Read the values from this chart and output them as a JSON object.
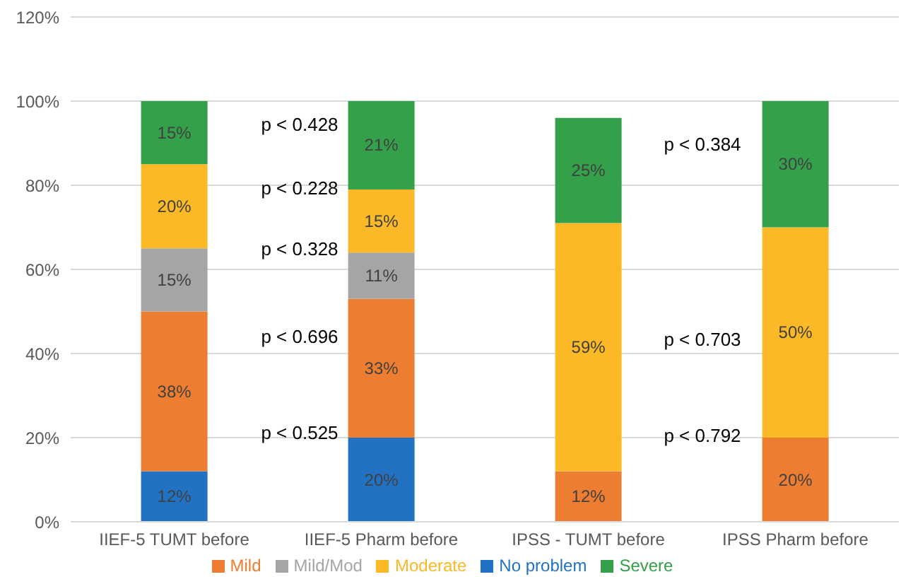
{
  "chart_data": {
    "type": "bar",
    "stacked": true,
    "categories": [
      "IIEF-5 TUMT before",
      "IIEF-5 Pharm before",
      "IPSS - TUMT before",
      "IPSS Pharm before"
    ],
    "series": [
      {
        "name": "No problem",
        "color": "#2272c3",
        "values": [
          12,
          20,
          null,
          null
        ],
        "value_labels": [
          "12%",
          "20%",
          null,
          null
        ]
      },
      {
        "name": "Mild",
        "color": "#ed7d31",
        "values": [
          38,
          33,
          12,
          20
        ],
        "value_labels": [
          "38%",
          "33%",
          "12%",
          "20%"
        ]
      },
      {
        "name": "Mild/Mod",
        "color": "#a5a5a5",
        "values": [
          15,
          11,
          null,
          null
        ],
        "value_labels": [
          "15%",
          "11%",
          null,
          null
        ]
      },
      {
        "name": "Moderate",
        "color": "#fbb928",
        "values": [
          20,
          15,
          59,
          50
        ],
        "value_labels": [
          "20%",
          "15%",
          "59%",
          "50%"
        ]
      },
      {
        "name": "Severe",
        "color": "#34a04a",
        "values": [
          15,
          21,
          25,
          30
        ],
        "value_labels": [
          "15%",
          "21%",
          "25%",
          "30%"
        ]
      }
    ],
    "ylim": [
      0,
      120
    ],
    "yticks": [
      {
        "value": 0,
        "label": "0%"
      },
      {
        "value": 20,
        "label": "20%"
      },
      {
        "value": 40,
        "label": "40%"
      },
      {
        "value": 60,
        "label": "60%"
      },
      {
        "value": 80,
        "label": "80%"
      },
      {
        "value": 100,
        "label": "100%"
      },
      {
        "value": 120,
        "label": "120%"
      }
    ],
    "grid": "y",
    "legend": "bottom",
    "annotations": [
      "p < 0.428",
      "p < 0.228",
      "p < 0.328",
      "p < 0.696",
      "p < 0.525",
      "p < 0.384",
      "p < 0.703",
      "p < 0.792"
    ]
  }
}
